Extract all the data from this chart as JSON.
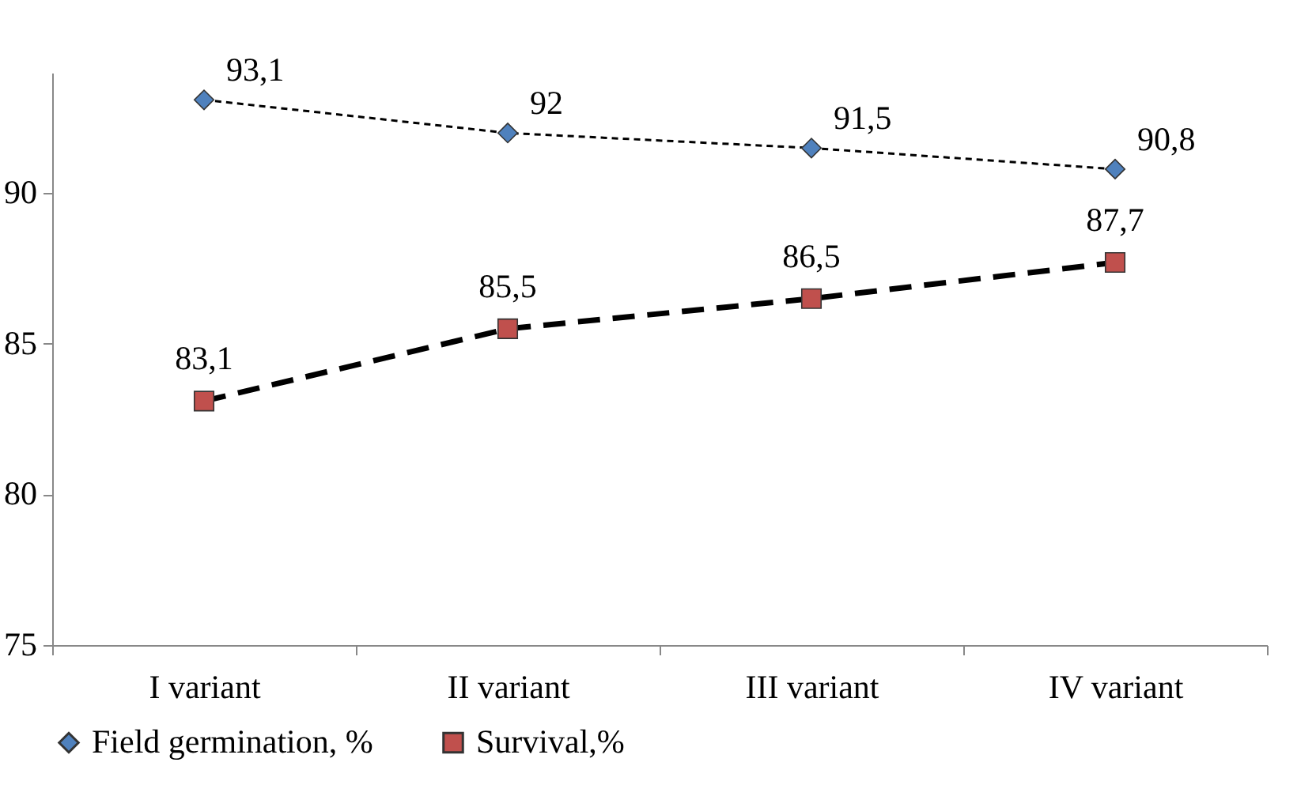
{
  "chart_data": {
    "type": "line",
    "categories": [
      "I variant",
      "II variant",
      "III variant",
      "IV variant"
    ],
    "series": [
      {
        "name": "Field germination, %",
        "color": "#4f81bd",
        "marker": "diamond",
        "line_style": "dotted",
        "values": [
          93.1,
          92,
          91.5,
          90.8
        ],
        "value_labels": [
          "93,1",
          "92",
          "91,5",
          "90,8"
        ]
      },
      {
        "name": "Survival,%",
        "color": "#c0504d",
        "marker": "square",
        "line_style": "dashed",
        "values": [
          83.1,
          85.5,
          86.5,
          87.7
        ],
        "value_labels": [
          "83,1",
          "85,5",
          "86,5",
          "87,7"
        ]
      }
    ],
    "ylim": [
      75,
      94
    ],
    "yticks": [
      75,
      80,
      85,
      90
    ],
    "grid": false,
    "legend": "bottom"
  }
}
